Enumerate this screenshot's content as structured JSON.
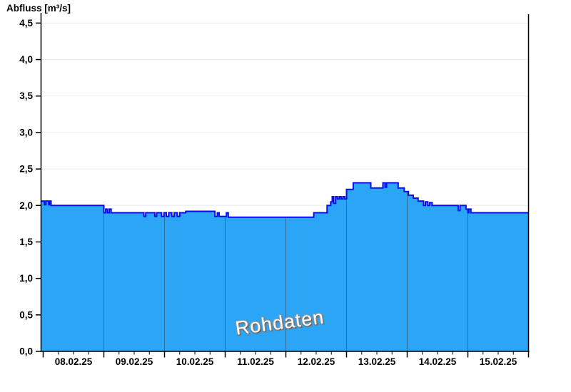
{
  "title": "Abfluss [m³/s]",
  "watermark": "Rohdaten",
  "colors": {
    "fill": "#2ba6f7",
    "line": "#0a0af0",
    "grid": "#ececec",
    "axis": "#000000",
    "day_divider": "#2d6f9b",
    "label": "#000000"
  },
  "chart_data": {
    "type": "area",
    "title": "Abfluss [m³/s]",
    "ylabel": "Abfluss [m³/s]",
    "ylim": [
      0,
      4.5
    ],
    "ytick_step": 0.5,
    "ytick_labels": [
      "0,0",
      "0,5",
      "1,0",
      "1,5",
      "2,0",
      "2,5",
      "3,0",
      "3,5",
      "4,0",
      "4,5"
    ],
    "categories": [
      "08.02.25",
      "09.02.25",
      "10.02.25",
      "11.02.25",
      "12.02.25",
      "13.02.25",
      "14.02.25",
      "15.02.25"
    ],
    "x_unit": "days since 08.02.25 00:00",
    "x_range_days": [
      0,
      8
    ],
    "minor_tick_days": 0.25,
    "grid": true,
    "legend_position": "none",
    "annotation": "Rohdaten",
    "series": [
      {
        "name": "Rohdaten",
        "interpolation": "step-after",
        "points": [
          [
            -0.035,
            2.06
          ],
          [
            0.02,
            2.01
          ],
          [
            0.045,
            2.06
          ],
          [
            0.09,
            2.01
          ],
          [
            0.105,
            2.06
          ],
          [
            0.13,
            2.0
          ],
          [
            1.0,
            1.9
          ],
          [
            1.03,
            1.95
          ],
          [
            1.06,
            1.9
          ],
          [
            1.09,
            1.95
          ],
          [
            1.12,
            1.9
          ],
          [
            1.66,
            1.85
          ],
          [
            1.69,
            1.9
          ],
          [
            1.84,
            1.85
          ],
          [
            1.87,
            1.9
          ],
          [
            1.95,
            1.85
          ],
          [
            1.99,
            1.9
          ],
          [
            2.03,
            1.85
          ],
          [
            2.07,
            1.9
          ],
          [
            2.12,
            1.85
          ],
          [
            2.16,
            1.9
          ],
          [
            2.21,
            1.85
          ],
          [
            2.25,
            1.9
          ],
          [
            2.35,
            1.92
          ],
          [
            2.83,
            1.85
          ],
          [
            2.87,
            1.9
          ],
          [
            2.9,
            1.85
          ],
          [
            3.02,
            1.9
          ],
          [
            3.05,
            1.84
          ],
          [
            4.46,
            1.9
          ],
          [
            4.68,
            2.0
          ],
          [
            4.74,
            2.05
          ],
          [
            4.765,
            2.12
          ],
          [
            4.79,
            2.03
          ],
          [
            4.82,
            2.12
          ],
          [
            4.85,
            2.09
          ],
          [
            4.88,
            2.12
          ],
          [
            4.91,
            2.09
          ],
          [
            4.94,
            2.12
          ],
          [
            4.97,
            2.09
          ],
          [
            5.0,
            2.22
          ],
          [
            5.11,
            2.31
          ],
          [
            5.4,
            2.24
          ],
          [
            5.6,
            2.31
          ],
          [
            5.635,
            2.25
          ],
          [
            5.66,
            2.31
          ],
          [
            5.85,
            2.24
          ],
          [
            5.95,
            2.19
          ],
          [
            6.02,
            2.14
          ],
          [
            6.1,
            2.1
          ],
          [
            6.18,
            2.06
          ],
          [
            6.27,
            2.0
          ],
          [
            6.3,
            2.05
          ],
          [
            6.34,
            2.0
          ],
          [
            6.37,
            2.04
          ],
          [
            6.41,
            2.0
          ],
          [
            6.84,
            1.93
          ],
          [
            6.87,
            2.0
          ],
          [
            6.97,
            1.95
          ],
          [
            7.0,
            1.9
          ],
          [
            7.015,
            1.95
          ],
          [
            7.05,
            1.9
          ],
          [
            8.0,
            1.9
          ]
        ]
      }
    ]
  }
}
